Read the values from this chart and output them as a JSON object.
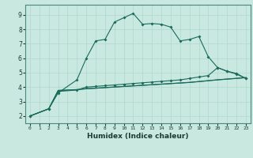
{
  "title": "",
  "xlabel": "Humidex (Indice chaleur)",
  "background_color": "#c8e8e0",
  "grid_color": "#b0d8d0",
  "line_color": "#1a6b5a",
  "xlim": [
    -0.5,
    23.5
  ],
  "ylim": [
    1.5,
    9.7
  ],
  "xticks": [
    0,
    1,
    2,
    3,
    4,
    5,
    6,
    7,
    8,
    9,
    10,
    11,
    12,
    13,
    14,
    15,
    16,
    17,
    18,
    19,
    20,
    21,
    22,
    23
  ],
  "yticks": [
    2,
    3,
    4,
    5,
    6,
    7,
    8,
    9
  ],
  "line1_x": [
    0,
    2,
    3,
    5,
    6,
    7,
    8,
    9,
    10,
    11,
    12,
    13,
    14,
    15,
    16,
    17,
    18,
    19,
    20,
    21,
    22,
    23
  ],
  "line1_y": [
    2.0,
    2.5,
    3.6,
    4.5,
    6.0,
    7.2,
    7.3,
    8.5,
    8.8,
    9.1,
    8.35,
    8.4,
    8.35,
    8.15,
    7.2,
    7.3,
    7.5,
    6.1,
    5.35,
    5.1,
    4.9,
    4.6
  ],
  "line2_x": [
    0,
    2,
    3,
    5,
    6,
    7,
    8,
    9,
    10,
    11,
    12,
    13,
    14,
    15,
    16,
    17,
    18,
    19,
    20,
    21,
    22,
    23
  ],
  "line2_y": [
    2.0,
    2.5,
    3.7,
    3.8,
    4.0,
    4.05,
    4.1,
    4.15,
    4.2,
    4.25,
    4.3,
    4.35,
    4.4,
    4.45,
    4.5,
    4.6,
    4.7,
    4.8,
    5.35,
    5.1,
    4.95,
    4.6
  ],
  "line3_x": [
    0,
    2,
    3,
    5,
    6,
    7,
    8,
    9,
    10,
    11,
    12,
    13,
    14,
    15,
    16,
    17,
    18,
    19,
    20,
    21,
    22,
    23
  ],
  "line3_y": [
    2.0,
    2.5,
    3.75,
    3.82,
    3.88,
    3.92,
    3.96,
    4.0,
    4.04,
    4.08,
    4.12,
    4.16,
    4.2,
    4.24,
    4.28,
    4.32,
    4.38,
    4.44,
    4.5,
    4.55,
    4.6,
    4.65
  ],
  "line4_x": [
    0,
    2,
    3,
    5,
    6,
    7,
    8,
    9,
    10,
    11,
    12,
    13,
    14,
    15,
    16,
    17,
    18,
    19,
    20,
    21,
    22,
    23
  ],
  "line4_y": [
    2.0,
    2.5,
    3.78,
    3.83,
    3.9,
    3.93,
    3.97,
    4.01,
    4.05,
    4.09,
    4.13,
    4.17,
    4.21,
    4.25,
    4.29,
    4.33,
    4.39,
    4.45,
    4.51,
    4.56,
    4.61,
    4.66
  ]
}
